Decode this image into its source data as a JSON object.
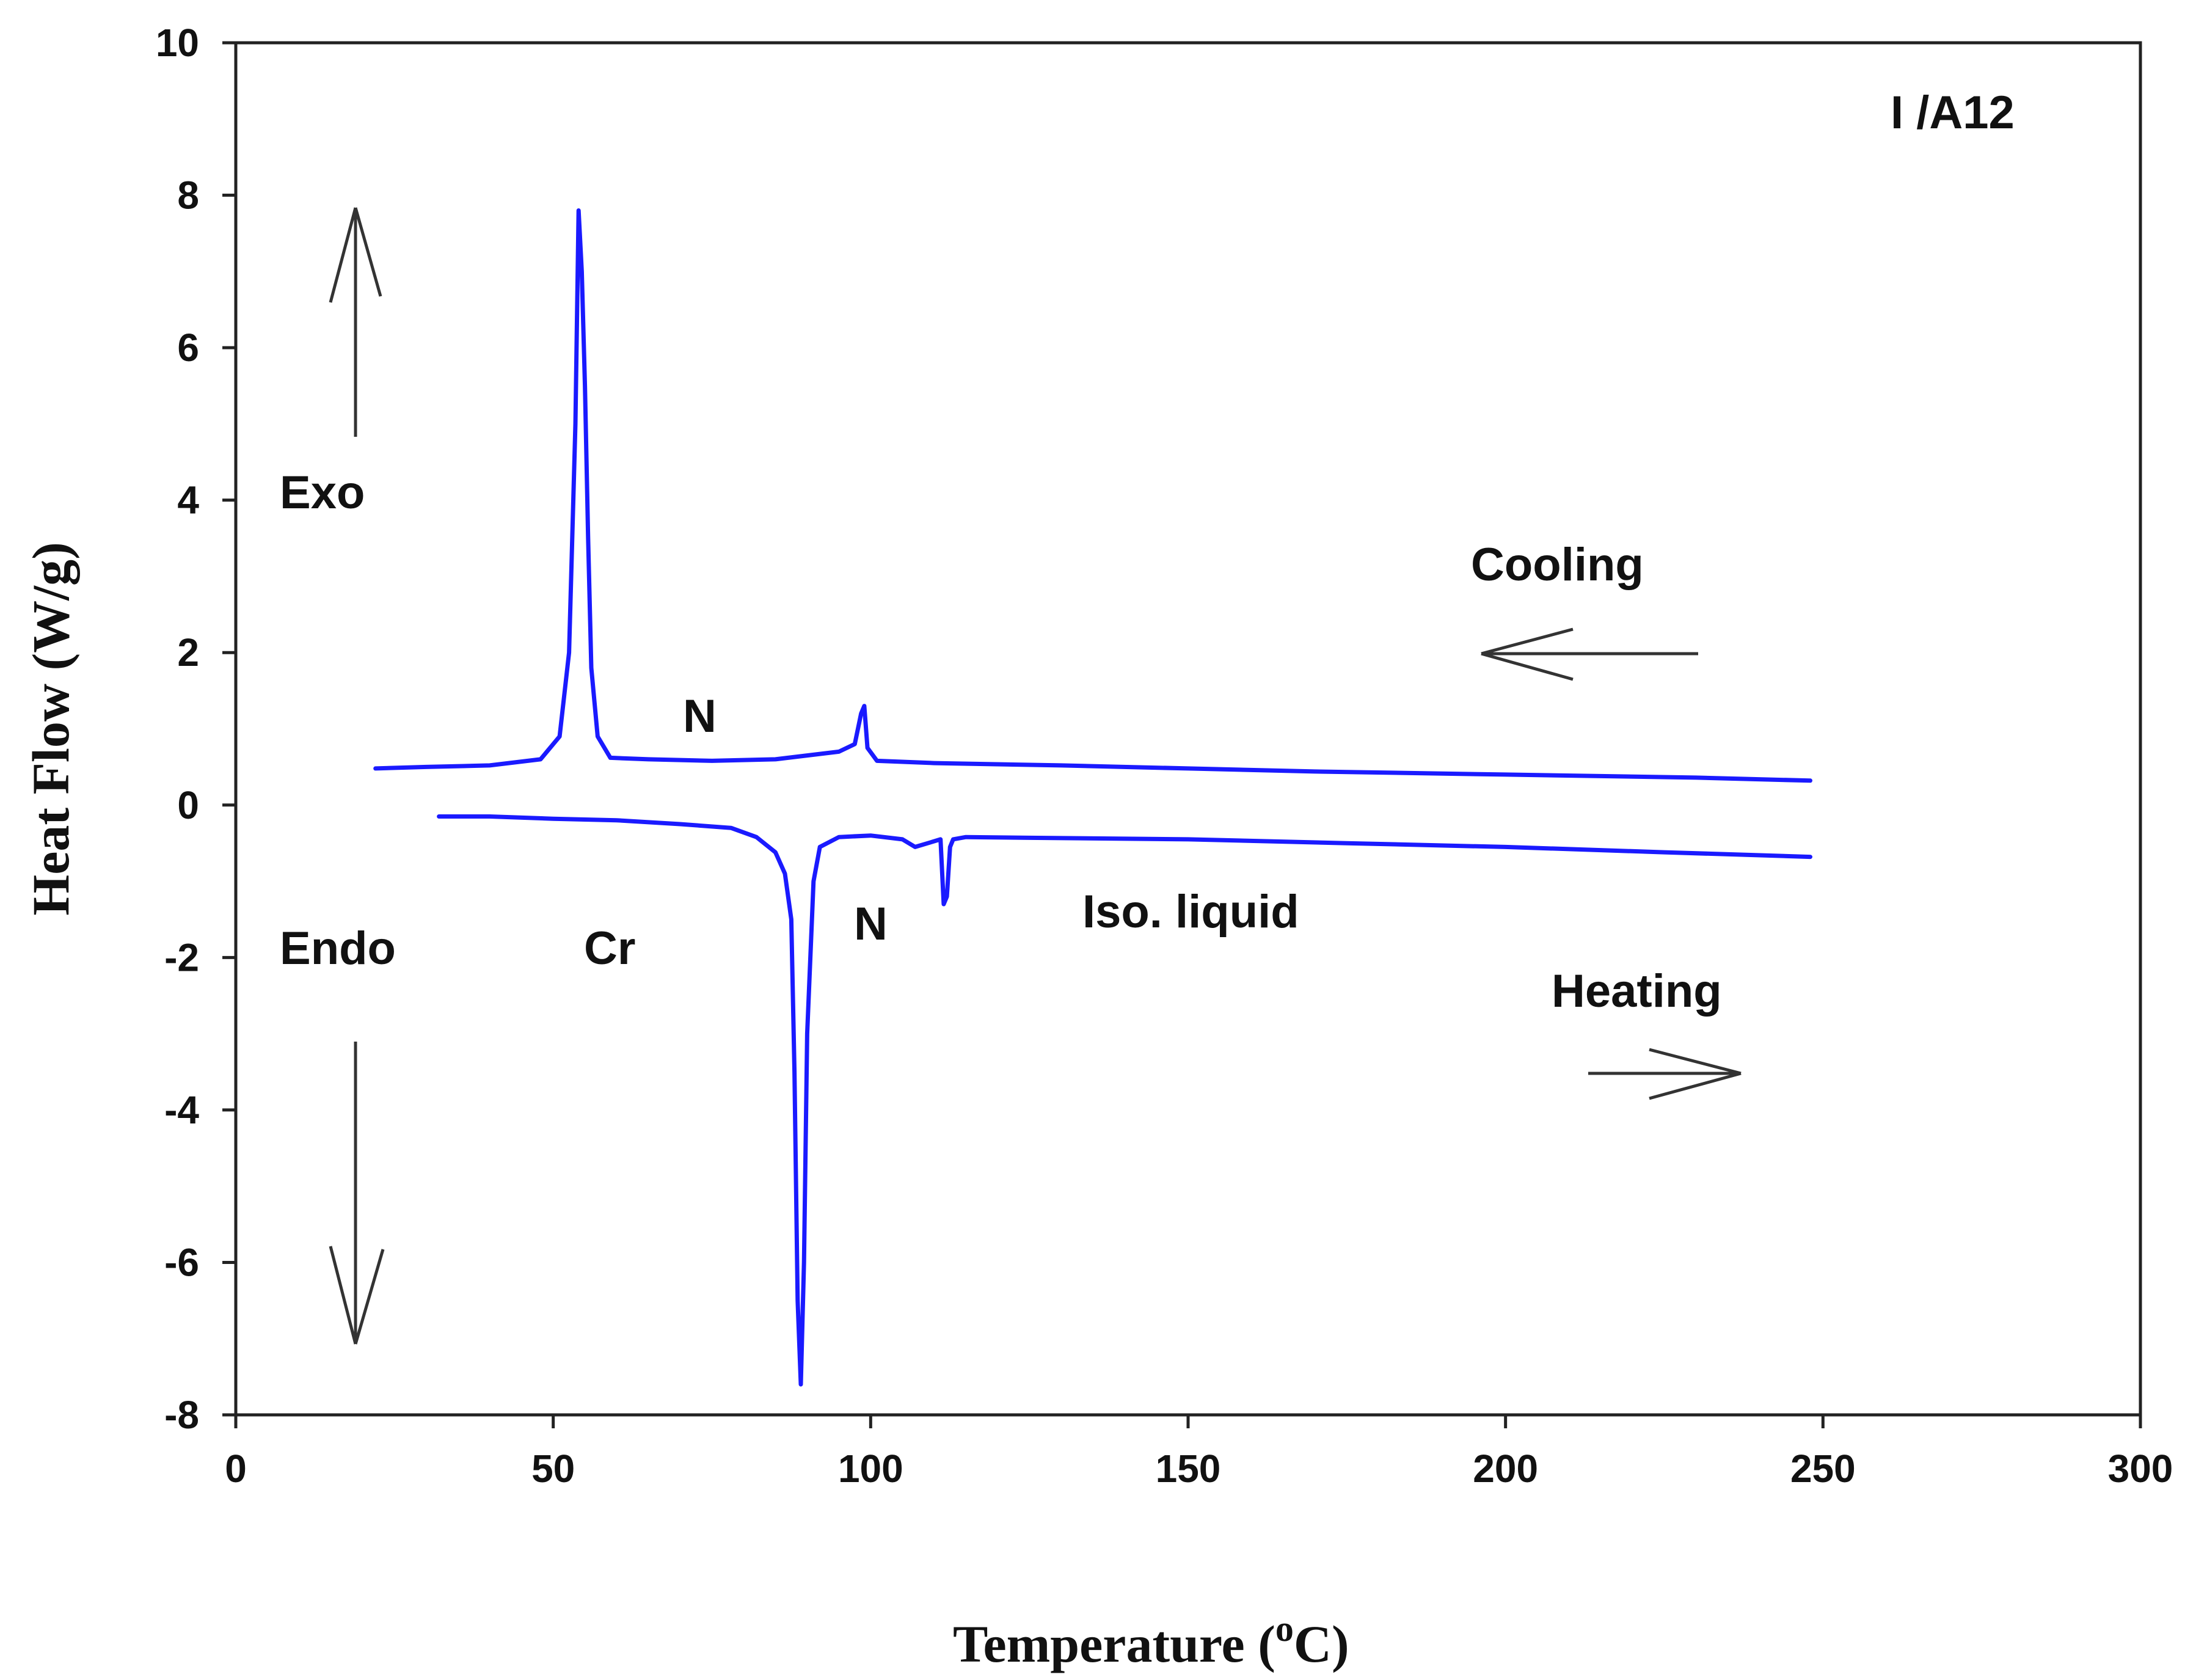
{
  "chart_data": {
    "type": "line",
    "title": "",
    "xlabel_main": "Temperature (",
    "xlabel_sup": "o",
    "xlabel_end": "C)",
    "ylabel": "Heat Flow (W/g)",
    "xlim": [
      0,
      300
    ],
    "ylim": [
      -8,
      10
    ],
    "grid": false,
    "x_ticks": [
      0,
      50,
      100,
      150,
      200,
      250,
      300
    ],
    "x_tick_labels": [
      "0",
      "50",
      "100",
      "150",
      "200",
      "250",
      "300"
    ],
    "y_ticks": [
      -8,
      -6,
      -4,
      -2,
      0,
      2,
      4,
      6,
      8,
      10
    ],
    "y_tick_labels": [
      "-8",
      "-6",
      "-4",
      "-2",
      "0",
      "2",
      "4",
      "6",
      "8",
      "10"
    ],
    "color": "#1a1aff",
    "series": [
      {
        "name": "Cooling",
        "x": [
          22,
          30,
          40,
          48,
          51,
          52.5,
          53.5,
          54,
          54.5,
          55,
          55.5,
          56,
          57,
          59,
          65,
          75,
          85,
          95,
          97.5,
          98.5,
          99,
          99.5,
          101,
          110,
          130,
          150,
          170,
          200,
          230,
          248
        ],
        "y": [
          0.48,
          0.5,
          0.52,
          0.6,
          0.9,
          2.0,
          5.0,
          7.8,
          7.0,
          5.5,
          3.5,
          1.8,
          0.9,
          0.62,
          0.6,
          0.58,
          0.6,
          0.7,
          0.8,
          1.2,
          1.3,
          0.75,
          0.58,
          0.55,
          0.52,
          0.48,
          0.44,
          0.4,
          0.36,
          0.32
        ]
      },
      {
        "name": "Heating",
        "x": [
          32,
          40,
          50,
          60,
          70,
          78,
          82,
          85,
          86.5,
          87.5,
          88,
          88.5,
          89,
          89.5,
          90,
          91,
          92,
          95,
          100,
          105,
          107,
          109,
          111,
          111.5,
          112,
          112.5,
          113,
          115,
          125,
          150,
          175,
          200,
          225,
          248
        ],
        "y": [
          -0.15,
          -0.15,
          -0.18,
          -0.2,
          -0.25,
          -0.3,
          -0.42,
          -0.62,
          -0.9,
          -1.5,
          -3.5,
          -6.5,
          -7.6,
          -6.0,
          -3.0,
          -1.0,
          -0.55,
          -0.42,
          -0.4,
          -0.45,
          -0.55,
          -0.5,
          -0.45,
          -1.3,
          -1.2,
          -0.55,
          -0.45,
          -0.42,
          -0.43,
          -0.45,
          -0.5,
          -0.55,
          -0.62,
          -0.68
        ]
      }
    ],
    "annotations": {
      "sample_label": "I /A12",
      "exo": "Exo",
      "endo": "Endo",
      "cooling": "Cooling",
      "heating": "Heating",
      "n_cooling": "N",
      "n_heating": "N",
      "cr": "Cr",
      "iso_liquid": "Iso. liquid"
    }
  }
}
